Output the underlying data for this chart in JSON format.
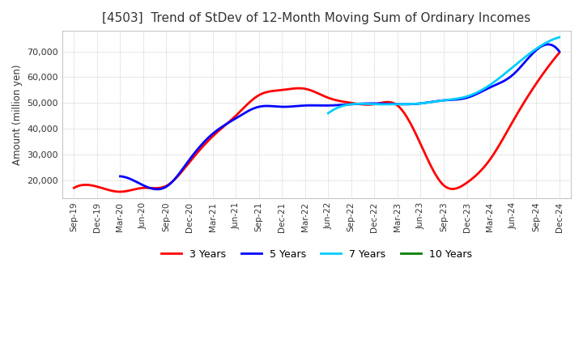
{
  "title": "[4503]  Trend of StDev of 12-Month Moving Sum of Ordinary Incomes",
  "ylabel": "Amount (million yen)",
  "ylim": [
    13000,
    78000
  ],
  "yticks": [
    20000,
    30000,
    40000,
    50000,
    60000,
    70000
  ],
  "background_color": "#ffffff",
  "plot_bg_color": "#ffffff",
  "grid_color": "#aaaaaa",
  "legend_entries": [
    "3 Years",
    "5 Years",
    "7 Years",
    "10 Years"
  ],
  "legend_colors": [
    "#ff0000",
    "#0000ff",
    "#00ccff",
    "#008000"
  ],
  "x_labels": [
    "Sep-19",
    "Dec-19",
    "Mar-20",
    "Jun-20",
    "Sep-20",
    "Dec-20",
    "Mar-21",
    "Jun-21",
    "Sep-21",
    "Dec-21",
    "Mar-22",
    "Jun-22",
    "Sep-22",
    "Dec-22",
    "Mar-23",
    "Jun-23",
    "Sep-23",
    "Dec-23",
    "Mar-24",
    "Jun-24",
    "Sep-24",
    "Dec-24"
  ],
  "series_3y": [
    17000,
    17500,
    15500,
    17000,
    17800,
    27000,
    37000,
    45000,
    53000,
    55000,
    55500,
    52000,
    50000,
    49500,
    49000,
    34000,
    18000,
    19000,
    28000,
    43000,
    57500,
    69500
  ],
  "series_5y": [
    null,
    null,
    21500,
    18000,
    17500,
    28000,
    38000,
    44000,
    48500,
    48500,
    49000,
    49000,
    49500,
    49800,
    49500,
    49800,
    51000,
    52000,
    56000,
    61000,
    70500,
    70000
  ],
  "series_7y": [
    null,
    null,
    null,
    null,
    null,
    null,
    null,
    null,
    null,
    null,
    null,
    46000,
    49500,
    49500,
    49500,
    49800,
    51000,
    52500,
    57000,
    64000,
    71000,
    75500
  ],
  "series_10y": [
    null,
    null,
    null,
    null,
    null,
    null,
    null,
    null,
    null,
    null,
    null,
    null,
    null,
    null,
    null,
    null,
    null,
    null,
    null,
    null,
    null,
    null
  ]
}
